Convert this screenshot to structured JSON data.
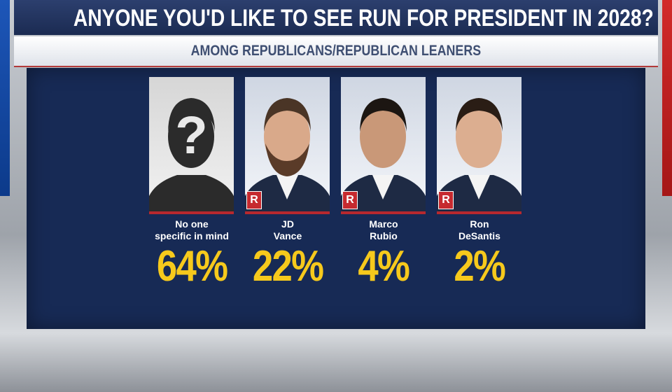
{
  "header": {
    "title": "ANYONE YOU'D LIKE TO SEE RUN FOR PRESIDENT IN 2028?",
    "subtitle": "AMONG REPUBLICANS/REPUBLICAN LEANERS"
  },
  "candidates": [
    {
      "icon": "?",
      "name_lines": [
        "No one",
        "specific in mind"
      ],
      "value": "64%"
    },
    {
      "party": "R",
      "name_lines": [
        "JD",
        "Vance"
      ],
      "value": "22%"
    },
    {
      "party": "R",
      "name_lines": [
        "Marco",
        "Rubio"
      ],
      "value": "4%"
    },
    {
      "party": "R",
      "name_lines": [
        "Ron",
        "DeSantis"
      ],
      "value": "2%"
    }
  ]
}
